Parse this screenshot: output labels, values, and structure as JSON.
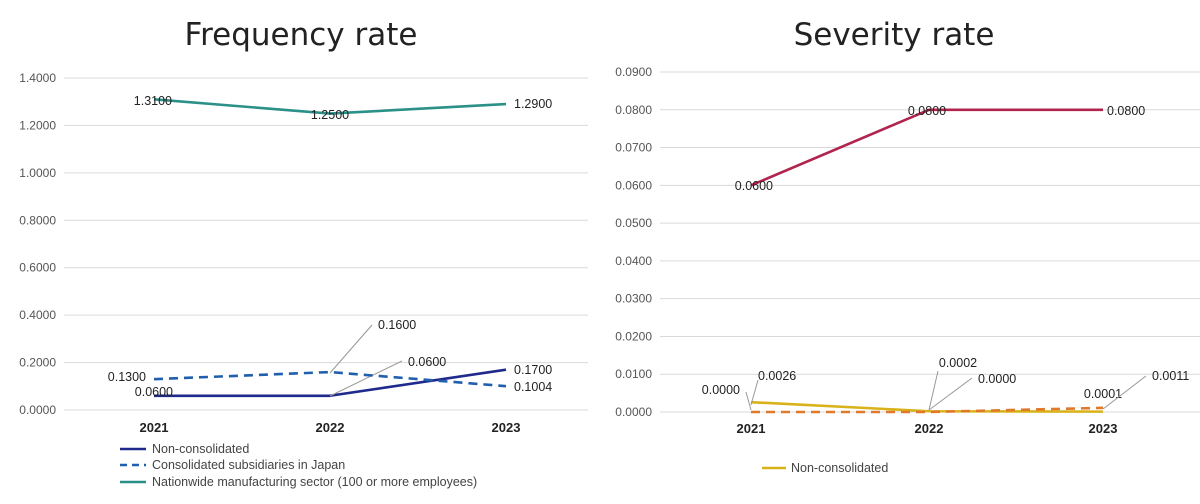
{
  "chart_data": [
    {
      "type": "line",
      "title": "Frequency rate",
      "categories": [
        "2021",
        "2022",
        "2023"
      ],
      "ylim": [
        0,
        1.4
      ],
      "yticks": [
        "0.0000",
        "0.2000",
        "0.4000",
        "0.6000",
        "0.8000",
        "1.0000",
        "1.2000",
        "1.4000"
      ],
      "grid": true,
      "legend": "bottom-left",
      "series": [
        {
          "name": "Non-consolidated",
          "values": [
            0.06,
            0.06,
            0.17
          ],
          "labels": [
            "0.0600",
            "0.0600",
            "0.1700"
          ],
          "color": "#1f2a8c",
          "dash": "solid"
        },
        {
          "name": "Consolidated subsidiaries in Japan",
          "values": [
            0.13,
            0.16,
            0.1004
          ],
          "labels": [
            "0.1300",
            "0.1600",
            "0.1004"
          ],
          "color": "#1f5fae",
          "dash": "dashed"
        },
        {
          "name": "Nationwide manufacturing sector (100 or more employees)",
          "values": [
            1.31,
            1.25,
            1.29
          ],
          "labels": [
            "1.3100",
            "1.2500",
            "1.2900"
          ],
          "color": "#2a9088",
          "dash": "solid"
        }
      ]
    },
    {
      "type": "line",
      "title": "Severity rate",
      "categories": [
        "2021",
        "2022",
        "2023"
      ],
      "ylim": [
        0,
        0.09
      ],
      "yticks": [
        "0.0000",
        "0.0100",
        "0.0200",
        "0.0300",
        "0.0400",
        "0.0500",
        "0.0600",
        "0.0700",
        "0.0800",
        "0.0900"
      ],
      "grid": true,
      "legend": "bottom-left",
      "series": [
        {
          "name": "Non-consolidated",
          "values": [
            0.0026,
            0.0002,
            0.0001
          ],
          "labels": [
            "0.0026",
            "0.0002",
            "0.0001"
          ],
          "color": "#d9b21a",
          "dash": "solid"
        },
        {
          "values": [
            0.0,
            0.0,
            0.0011
          ],
          "labels": [
            "0.0000",
            "0.0000",
            "0.0011"
          ],
          "color": "#e07a2a",
          "dash": "dashed"
        },
        {
          "values": [
            0.06,
            0.08,
            0.08
          ],
          "labels": [
            "0.0600",
            "0.0800",
            "0.0800"
          ],
          "color": "#b0244e",
          "dash": "solid"
        }
      ]
    }
  ]
}
